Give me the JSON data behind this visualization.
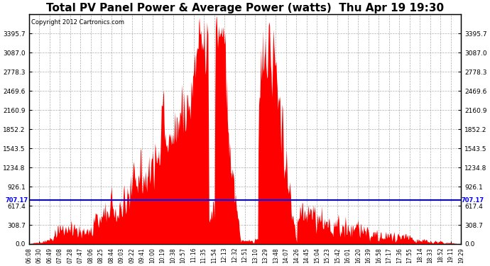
{
  "title": "Total PV Panel Power & Average Power (watts)  Thu Apr 19 19:30",
  "copyright": "Copyright 2012 Cartronics.com",
  "ymin": 0.0,
  "ymax": 3704.3,
  "ytick_interval": 308.7,
  "avg_line_value": 707.17,
  "avg_line_label": "707.17",
  "line_color": "blue",
  "fill_color": "red",
  "background_color": "white",
  "grid_color": "#999999",
  "title_fontsize": 11,
  "copyright_fontsize": 6,
  "avg_label_fontsize": 6,
  "x_tick_fontsize": 5.5,
  "y_tick_fontsize": 6.5,
  "time_labels": [
    "06:08",
    "06:30",
    "06:49",
    "07:08",
    "07:28",
    "07:47",
    "08:06",
    "08:25",
    "08:44",
    "09:03",
    "09:22",
    "09:41",
    "10:00",
    "10:19",
    "10:38",
    "10:57",
    "11:16",
    "11:35",
    "11:54",
    "12:13",
    "12:32",
    "12:51",
    "13:10",
    "13:29",
    "13:48",
    "14:07",
    "14:26",
    "14:45",
    "15:04",
    "15:23",
    "15:42",
    "16:01",
    "16:20",
    "16:39",
    "16:58",
    "17:17",
    "17:36",
    "17:55",
    "18:14",
    "18:33",
    "18:52",
    "19:11",
    "19:29"
  ],
  "n_points": 800
}
